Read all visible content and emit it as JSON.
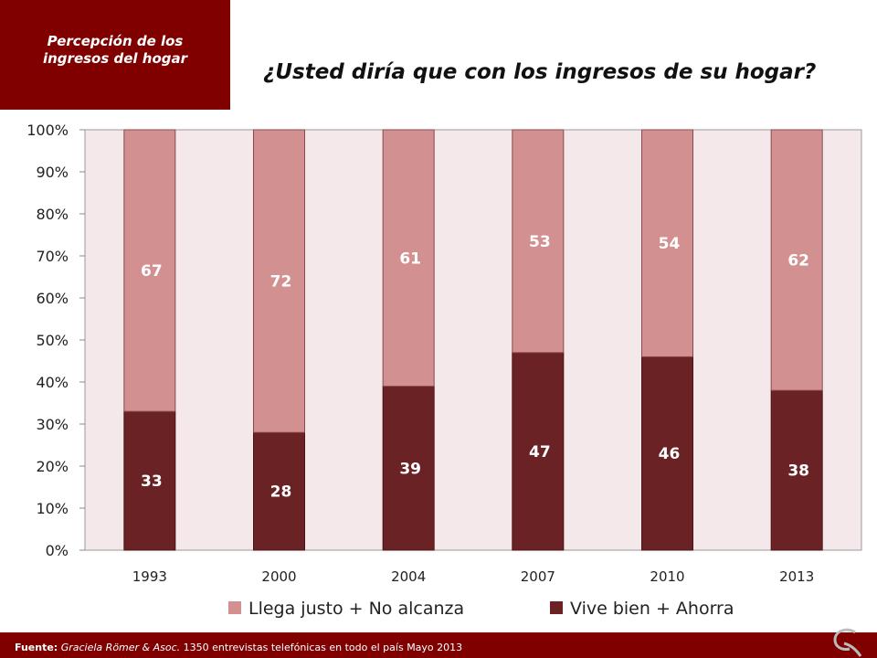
{
  "header": {
    "tag": "Percepción  de los\ningresos del hogar",
    "question": "¿Usted diría que con los ingresos de su hogar?"
  },
  "footer": {
    "source_label": "Fuente:",
    "source_org": "Graciela Römer & Asoc.",
    "source_detail": " 1350 entrevistas telefónicas en todo el país  Mayo 2013"
  },
  "colors": {
    "brand": "#800000",
    "series_top": "#d29090",
    "series_bottom": "#6a2224",
    "plot_bg": "#f4e8ea"
  },
  "chart_data": {
    "type": "bar",
    "stacked": true,
    "categories": [
      "1993",
      "2000",
      "2004",
      "2007",
      "2010",
      "2013"
    ],
    "series": [
      {
        "name": "Vive bien + Ahorra",
        "values": [
          33,
          28,
          39,
          47,
          46,
          38
        ],
        "color": "#6a2224"
      },
      {
        "name": "Llega justo + No alcanza",
        "values": [
          67,
          72,
          61,
          53,
          54,
          62
        ],
        "color": "#d29090"
      }
    ],
    "ylim": [
      0,
      100
    ],
    "yticks": [
      "0%",
      "10%",
      "20%",
      "30%",
      "40%",
      "50%",
      "60%",
      "70%",
      "80%",
      "90%",
      "100%"
    ],
    "xlabel": "",
    "ylabel": "",
    "grid": false,
    "legend": [
      "Llega justo + No alcanza",
      "Vive bien + Ahorra"
    ],
    "legend_position": "bottom"
  }
}
